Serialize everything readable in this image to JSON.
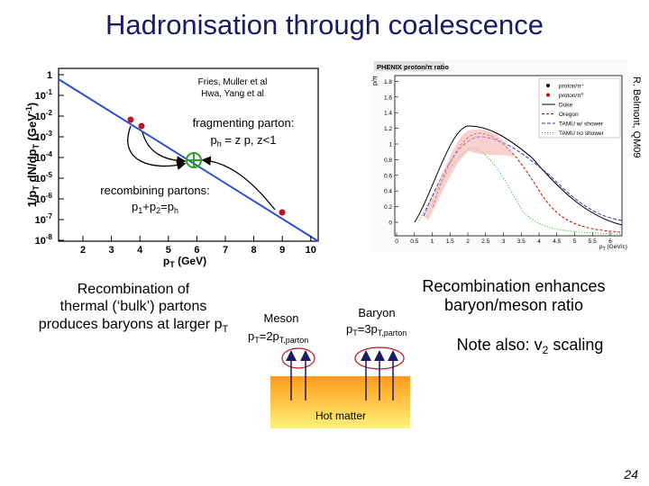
{
  "title": "Hadronisation through coalescence",
  "left_plot": {
    "authors": [
      "Fries, Muller et al",
      "Hwa, Yang et al"
    ],
    "fragmenting": {
      "line1": "fragmenting parton:",
      "line2": [
        "p",
        "h",
        " = z p, z<1"
      ]
    },
    "recombining": {
      "line1": "recombining partons:",
      "line2": [
        "p",
        "1",
        "+p",
        "2",
        "=p",
        "h"
      ]
    },
    "y_label": [
      "1/p",
      "T",
      " dN/dp",
      "T",
      " (GeV",
      "-1",
      ")"
    ],
    "x_label": [
      "p",
      "T",
      " (GeV)"
    ],
    "y_ticks": [
      {
        "base": "1"
      },
      {
        "base": "10",
        "exp": "-1"
      },
      {
        "base": "10",
        "exp": "-2"
      },
      {
        "base": "10",
        "exp": "-3"
      },
      {
        "base": "10",
        "exp": "-4"
      },
      {
        "base": "10",
        "exp": "-5"
      },
      {
        "base": "10",
        "exp": "-6"
      },
      {
        "base": "10",
        "exp": "-7"
      },
      {
        "base": "10",
        "exp": "-8"
      }
    ],
    "x_ticks": [
      "2",
      "3",
      "4",
      "5",
      "6",
      "7",
      "8",
      "9",
      "10"
    ]
  },
  "right_plot": {
    "title": "PHENIX proton/π ratio",
    "y_label": "p/π",
    "x_label": [
      "p",
      "T",
      " (GeV/c)"
    ],
    "y_ticks": [
      "0",
      "0.2",
      "0.4",
      "0.6",
      "0.8",
      "1",
      "1.2",
      "1.4",
      "1.6",
      "1.8"
    ],
    "x_ticks": [
      "0",
      "0.5",
      "1",
      "1.5",
      "2",
      "2.5",
      "3",
      "3.5",
      "4",
      "4.5",
      "5",
      "5.5",
      "6"
    ],
    "legend": [
      "proton/π⁺",
      "proton/π⁰",
      "Duke",
      "Oregon",
      "TAMU w/ shower",
      "TAMU no shower"
    ]
  },
  "credit": "R. Belmont, QM09",
  "bottom_left": [
    "Recombination of",
    "thermal (‘bulk’) partons",
    "produces baryons at larger p",
    "T"
  ],
  "meson": {
    "label": "Meson",
    "formula": [
      "p",
      "T",
      "=2p",
      "T,parton"
    ]
  },
  "baryon": {
    "label": "Baryon",
    "formula": [
      "p",
      "T",
      "=3p",
      "T,parton"
    ]
  },
  "enhance": [
    "Recombination enhances",
    "baryon/meson ratio"
  ],
  "note": [
    "Note also: v",
    "2",
    " scaling"
  ],
  "hot_matter": "Hot matter",
  "page_number": "24"
}
